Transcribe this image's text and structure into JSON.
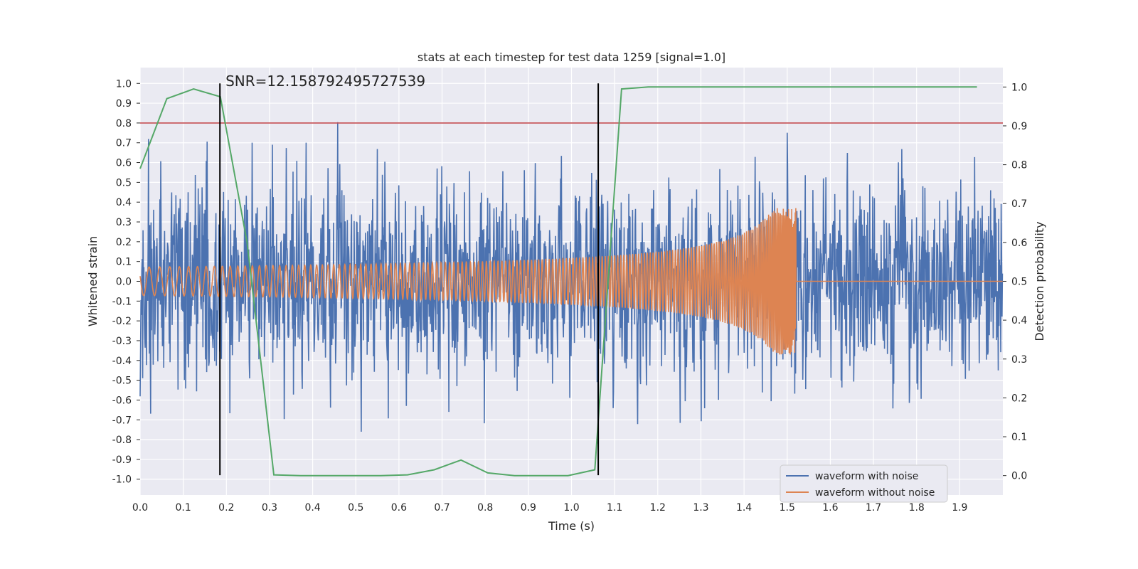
{
  "chart_data": {
    "type": "line",
    "title": "stats at each timestep for test data 1259 [signal=1.0]",
    "xlabel": "Time (s)",
    "ylabel": "Whitened strain",
    "y2label": "Detection probability",
    "xlim": [
      0.0,
      2.0
    ],
    "ylim": [
      -1.08,
      1.08
    ],
    "y2lim": [
      -0.05,
      1.05
    ],
    "grid": true,
    "xticks": [
      "0.0",
      "0.1",
      "0.2",
      "0.3",
      "0.4",
      "0.5",
      "0.6",
      "0.7",
      "0.8",
      "0.9",
      "1.0",
      "1.1",
      "1.2",
      "1.3",
      "1.4",
      "1.5",
      "1.6",
      "1.7",
      "1.8",
      "1.9"
    ],
    "yticks": [
      "1.0",
      "0.9",
      "0.8",
      "0.7",
      "0.6",
      "0.5",
      "0.4",
      "0.3",
      "0.2",
      "0.1",
      "0.0",
      "-0.1",
      "-0.2",
      "-0.3",
      "-0.4",
      "-0.5",
      "-0.6",
      "-0.7",
      "-0.8",
      "-0.9",
      "-1.0"
    ],
    "y2ticks": [
      "1.0",
      "0.9",
      "0.8",
      "0.7",
      "0.6",
      "0.5",
      "0.4",
      "0.3",
      "0.2",
      "0.1",
      "0.0"
    ],
    "annotation": "SNR=12.158792495727539",
    "threshold": {
      "y": 0.8,
      "color": "#c44e52"
    },
    "vlines": [
      {
        "x": 0.185,
        "ymin": -0.98,
        "ymax": 1.0,
        "color": "#000000"
      },
      {
        "x": 1.062,
        "ymin": -0.98,
        "ymax": 1.0,
        "color": "#000000"
      }
    ],
    "series": [
      {
        "name": "waveform with noise",
        "color": "#4c72b0",
        "axis": "left",
        "description": "whitened noisy strain, approx. amplitude up to ±0.9, spans 0.0–2.0 s"
      },
      {
        "name": "waveform without noise",
        "color": "#dd8452",
        "axis": "left",
        "description": "chirp signal, amplitude ~0.07 at 0 s rising to ~0.37 at 1.52 s, then flat 0"
      },
      {
        "name": "detection probability",
        "color": "#55a868",
        "axis": "right",
        "x": [
          0.0,
          0.062,
          0.124,
          0.186,
          0.248,
          0.31,
          0.372,
          0.434,
          0.496,
          0.558,
          0.62,
          0.682,
          0.744,
          0.806,
          0.868,
          0.93,
          0.992,
          1.054,
          1.116,
          1.178,
          1.24,
          1.302,
          1.364,
          1.426,
          1.488,
          1.55,
          1.612,
          1.674,
          1.736,
          1.798,
          1.86,
          1.94
        ],
        "values": [
          0.79,
          0.97,
          0.995,
          0.975,
          0.6,
          0.002,
          0.0,
          0.0,
          0.0,
          0.0,
          0.002,
          0.015,
          0.04,
          0.007,
          0.0,
          0.0,
          0.0,
          0.015,
          0.995,
          1.0,
          1.0,
          1.0,
          1.0,
          1.0,
          1.0,
          1.0,
          1.0,
          1.0,
          1.0,
          1.0,
          1.0,
          1.0
        ]
      }
    ],
    "legend": {
      "placement": "lower-right",
      "entries": [
        {
          "label": "waveform with noise",
          "color": "#4c72b0"
        },
        {
          "label": "waveform without noise",
          "color": "#dd8452"
        }
      ]
    },
    "colors": {
      "background": "#eaeaf2",
      "grid": "#ffffff"
    }
  }
}
